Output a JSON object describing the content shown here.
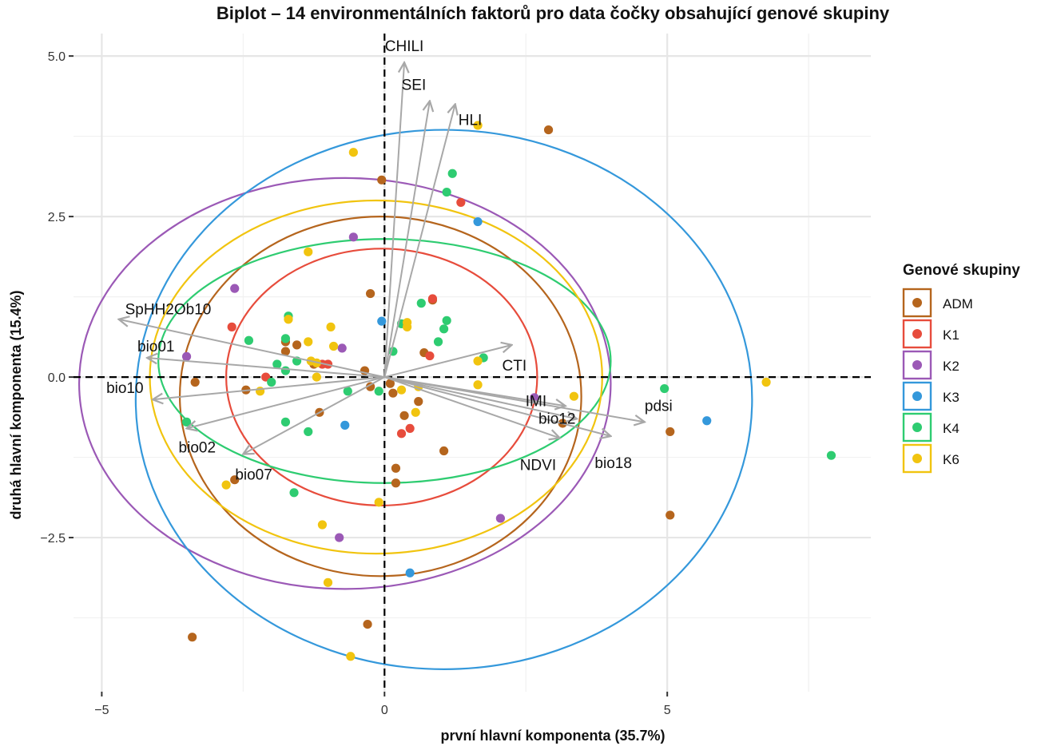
{
  "chart_data": {
    "type": "scatter",
    "title": "Biplot – 14 environmentálních faktorů pro data čočky obsahující genové skupiny",
    "xlabel": "první hlavní komponenta (35.7%)",
    "ylabel": "druhá hlavní komponenta (15.4%)",
    "xlim": [
      -5.5,
      8.6
    ],
    "ylim": [
      -4.9,
      5.35
    ],
    "x_ticks": [
      {
        "value": -5,
        "label": "−5"
      },
      {
        "value": 0,
        "label": "0"
      },
      {
        "value": 5,
        "label": "5"
      }
    ],
    "y_ticks": [
      {
        "value": 5,
        "label": "5.0"
      },
      {
        "value": 2.5,
        "label": "2.5"
      },
      {
        "value": 0,
        "label": "0.0"
      },
      {
        "value": -2.5,
        "label": "−2.5"
      }
    ],
    "legend": {
      "title": "Genové skupiny",
      "position": "right",
      "entries": [
        {
          "name": "ADM",
          "color": "#b5651d"
        },
        {
          "name": "K1",
          "color": "#e74c3c"
        },
        {
          "name": "K2",
          "color": "#9b59b6"
        },
        {
          "name": "K3",
          "color": "#3498db"
        },
        {
          "name": "K4",
          "color": "#2ecc71"
        },
        {
          "name": "K6",
          "color": "#f1c40f"
        }
      ]
    },
    "loadings": [
      {
        "name": "CHILI",
        "x": 0.35,
        "y": 4.9
      },
      {
        "name": "SEI",
        "x": 0.8,
        "y": 4.3
      },
      {
        "name": "HLI",
        "x": 1.25,
        "y": 4.25
      },
      {
        "name": "SpHH2Ob10",
        "x": -4.7,
        "y": 0.9
      },
      {
        "name": "bio01",
        "x": -4.2,
        "y": 0.3
      },
      {
        "name": "bio10",
        "x": -4.1,
        "y": -0.35
      },
      {
        "name": "bio02",
        "x": -3.5,
        "y": -0.8
      },
      {
        "name": "bio07",
        "x": -2.5,
        "y": -1.2
      },
      {
        "name": "CTI",
        "x": 2.25,
        "y": 0.5
      },
      {
        "name": "IMI",
        "x": 3.2,
        "y": -0.45
      },
      {
        "name": "bio12",
        "x": 3.4,
        "y": -0.65
      },
      {
        "name": "pdsi",
        "x": 4.6,
        "y": -0.7
      },
      {
        "name": "NDVI",
        "x": 3.1,
        "y": -0.95
      },
      {
        "name": "bio18",
        "x": 4.0,
        "y": -0.92
      }
    ],
    "ellipses": [
      {
        "group": "ADM",
        "cx": -0.07,
        "cy": -0.3,
        "rx": 3.55,
        "ry": 2.8
      },
      {
        "group": "K1",
        "cx": -0.05,
        "cy": 0.0,
        "rx": 2.75,
        "ry": 2.0
      },
      {
        "group": "K2",
        "cx": -0.7,
        "cy": -0.1,
        "rx": 4.7,
        "ry": 3.2
      },
      {
        "group": "K3",
        "cx": 1.05,
        "cy": -0.35,
        "rx": 5.45,
        "ry": 4.2
      },
      {
        "group": "K4",
        "cx": 0.0,
        "cy": 0.25,
        "rx": 4.0,
        "ry": 1.9
      },
      {
        "group": "K6",
        "cx": -0.15,
        "cy": 0.0,
        "rx": 4.0,
        "ry": 2.75
      }
    ],
    "series": [
      {
        "name": "ADM",
        "points": [
          [
            2.9,
            3.85
          ],
          [
            -0.05,
            3.07
          ],
          [
            -0.25,
            1.3
          ],
          [
            0.85,
            1.2
          ],
          [
            -1.75,
            0.55
          ],
          [
            -1.55,
            0.5
          ],
          [
            -1.75,
            0.4
          ],
          [
            -0.35,
            0.1
          ],
          [
            0.7,
            0.38
          ],
          [
            0.1,
            -0.1
          ],
          [
            0.15,
            -0.25
          ],
          [
            -3.35,
            -0.08
          ],
          [
            -2.45,
            -0.2
          ],
          [
            0.6,
            -0.38
          ],
          [
            0.35,
            -0.6
          ],
          [
            3.15,
            -0.72
          ],
          [
            -1.15,
            -0.55
          ],
          [
            1.05,
            -1.15
          ],
          [
            5.05,
            -0.85
          ],
          [
            5.05,
            -2.15
          ],
          [
            -2.65,
            -1.6
          ],
          [
            0.2,
            -1.42
          ],
          [
            0.2,
            -1.65
          ],
          [
            -3.4,
            -4.05
          ],
          [
            -0.3,
            -3.85
          ],
          [
            -1.25,
            0.2
          ],
          [
            -0.25,
            -0.15
          ]
        ]
      },
      {
        "name": "K1",
        "points": [
          [
            1.35,
            2.72
          ],
          [
            -2.7,
            0.78
          ],
          [
            0.85,
            1.22
          ],
          [
            0.8,
            0.33
          ],
          [
            -1.0,
            0.2
          ],
          [
            -1.1,
            0.2
          ],
          [
            -2.1,
            0.0
          ],
          [
            0.3,
            -0.88
          ],
          [
            0.45,
            -0.8
          ]
        ]
      },
      {
        "name": "K2",
        "points": [
          [
            -0.55,
            2.18
          ],
          [
            -2.65,
            1.38
          ],
          [
            -3.5,
            0.32
          ],
          [
            -0.75,
            0.45
          ],
          [
            2.65,
            -0.32
          ],
          [
            2.05,
            -2.2
          ],
          [
            -0.8,
            -2.5
          ]
        ]
      },
      {
        "name": "K3",
        "points": [
          [
            -0.05,
            0.87
          ],
          [
            1.65,
            2.42
          ],
          [
            -0.7,
            -0.75
          ],
          [
            0.45,
            -3.05
          ],
          [
            5.7,
            -0.68
          ]
        ]
      },
      {
        "name": "K4",
        "points": [
          [
            1.2,
            3.17
          ],
          [
            1.1,
            2.88
          ],
          [
            0.65,
            1.15
          ],
          [
            1.1,
            0.88
          ],
          [
            1.05,
            0.75
          ],
          [
            0.3,
            0.83
          ],
          [
            0.95,
            0.55
          ],
          [
            0.15,
            0.4
          ],
          [
            1.75,
            0.3
          ],
          [
            -1.7,
            0.95
          ],
          [
            -1.75,
            0.6
          ],
          [
            -2.4,
            0.57
          ],
          [
            -1.55,
            0.25
          ],
          [
            -1.9,
            0.2
          ],
          [
            -1.75,
            0.1
          ],
          [
            -2.0,
            -0.08
          ],
          [
            -0.65,
            -0.22
          ],
          [
            -0.1,
            -0.22
          ],
          [
            -3.5,
            -0.7
          ],
          [
            -1.75,
            -0.7
          ],
          [
            -1.35,
            -0.85
          ],
          [
            -1.6,
            -1.8
          ],
          [
            4.95,
            -0.18
          ],
          [
            7.9,
            -1.22
          ]
        ]
      },
      {
        "name": "K6",
        "points": [
          [
            1.65,
            3.92
          ],
          [
            -0.55,
            3.5
          ],
          [
            -1.35,
            1.95
          ],
          [
            -1.7,
            0.9
          ],
          [
            -0.95,
            0.78
          ],
          [
            0.4,
            0.85
          ],
          [
            0.4,
            0.78
          ],
          [
            -1.35,
            0.55
          ],
          [
            -0.9,
            0.48
          ],
          [
            -1.3,
            0.25
          ],
          [
            -1.2,
            0.22
          ],
          [
            -1.2,
            0.0
          ],
          [
            1.65,
            0.25
          ],
          [
            0.3,
            -0.2
          ],
          [
            0.6,
            -0.15
          ],
          [
            1.65,
            -0.12
          ],
          [
            3.35,
            -0.3
          ],
          [
            6.75,
            -0.08
          ],
          [
            -2.2,
            -0.22
          ],
          [
            0.55,
            -0.55
          ],
          [
            -2.8,
            -1.68
          ],
          [
            -0.1,
            -1.95
          ],
          [
            -1.1,
            -2.3
          ],
          [
            -1.0,
            -3.2
          ],
          [
            -0.6,
            -4.35
          ]
        ]
      }
    ]
  }
}
